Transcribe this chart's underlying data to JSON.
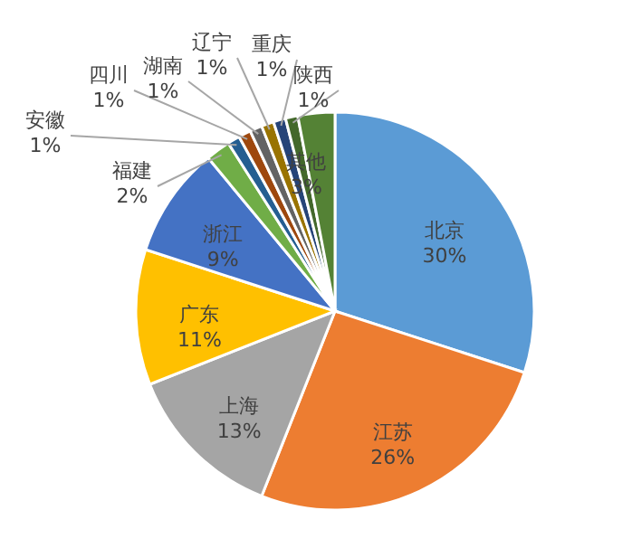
{
  "chart_data": {
    "type": "pie",
    "categories": [
      "北京",
      "江苏",
      "上海",
      "广东",
      "浙江",
      "福建",
      "安徽",
      "四川",
      "湖南",
      "辽宁",
      "重庆",
      "陕西",
      "其他"
    ],
    "values": [
      30,
      26,
      13,
      11,
      9,
      2,
      1,
      1,
      1,
      1,
      1,
      1,
      3
    ],
    "value_labels": [
      "30%",
      "26%",
      "13%",
      "11%",
      "9%",
      "2%",
      "1%",
      "1%",
      "1%",
      "1%",
      "1%",
      "1%",
      "3%"
    ],
    "colors": [
      "#5b9bd5",
      "#ed7d31",
      "#a5a5a5",
      "#ffc000",
      "#4472c4",
      "#70ad47",
      "#255e91",
      "#9e480e",
      "#636363",
      "#997300",
      "#264478",
      "#43682b",
      "#548235"
    ]
  }
}
